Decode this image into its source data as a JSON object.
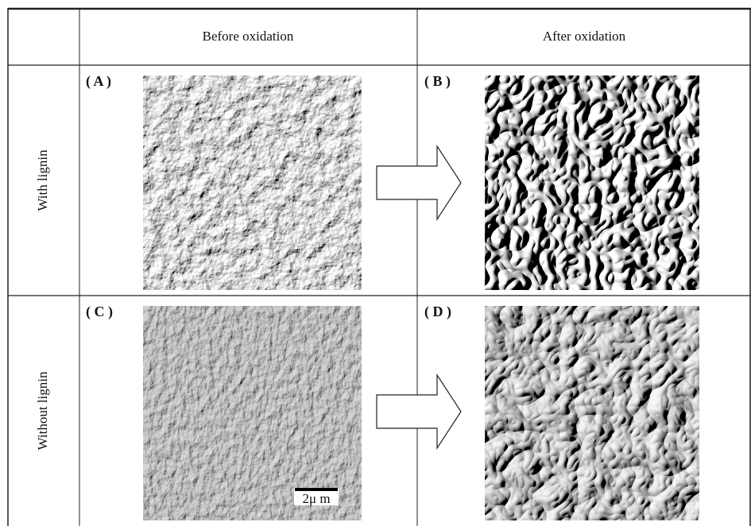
{
  "header": {
    "columns": [
      "Before oxidation",
      "After oxidation"
    ]
  },
  "rows": [
    {
      "label": "With lignin",
      "panels": [
        "( A )",
        "( B )"
      ]
    },
    {
      "label": "Without lignin",
      "panels": [
        "( C )",
        "( D )"
      ]
    }
  ],
  "scale_bar": "2μ m"
}
